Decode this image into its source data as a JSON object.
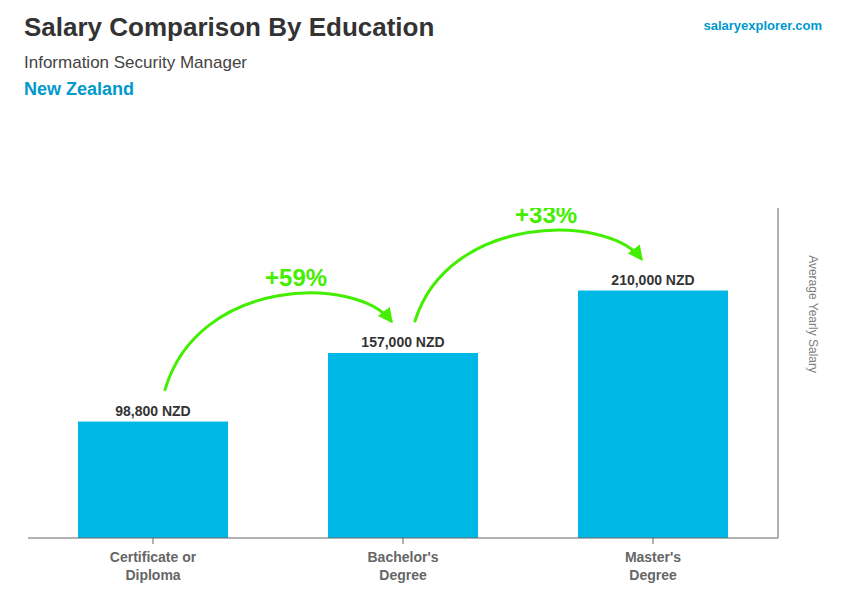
{
  "chart_data": {
    "type": "bar",
    "title": "Salary Comparison By Education",
    "subtitle": "Information Security Manager",
    "location": "New Zealand",
    "watermark": "salaryexplorer.com",
    "ylabel": "Average Yearly Salary",
    "categories": [
      "Certificate or\nDiploma",
      "Bachelor's\nDegree",
      "Master's\nDegree"
    ],
    "values": [
      98800,
      157000,
      210000
    ],
    "value_labels": [
      "98,800 NZD",
      "157,000 NZD",
      "210,000 NZD"
    ],
    "data_labels": true,
    "color": "#00b8e6",
    "ylim": [
      0,
      280000
    ],
    "tick_labels": "x",
    "grid": false,
    "annotations": [
      {
        "text": "+59%",
        "color": "#44ee00"
      },
      {
        "text": "+33%",
        "color": "#44ee00"
      }
    ]
  }
}
